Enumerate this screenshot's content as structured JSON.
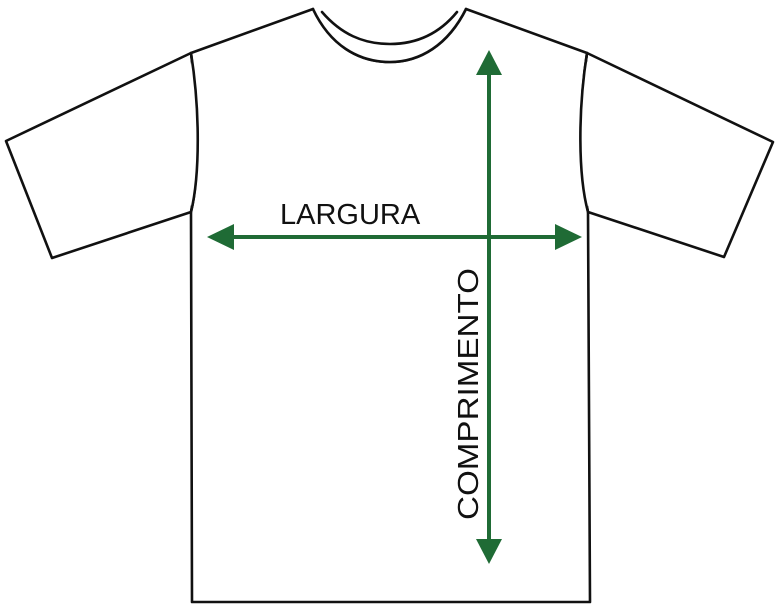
{
  "labels": {
    "width": "LARGURA",
    "length": "COMPRIMENTO"
  },
  "colors": {
    "outline": "#111111",
    "arrow": "#1f6b35",
    "background": "#ffffff"
  }
}
